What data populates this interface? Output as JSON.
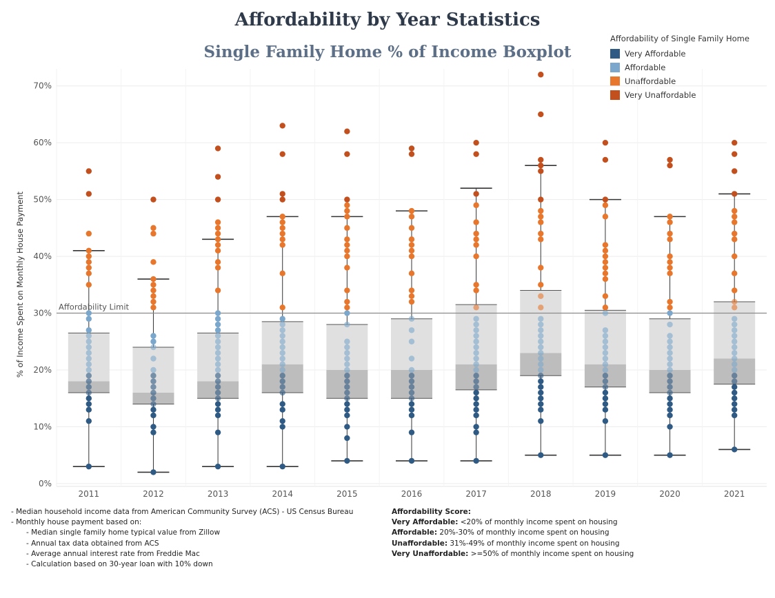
{
  "title": "Affordability by Year Statistics",
  "subtitle": "Single Family Home % of Income Boxplot",
  "legend": {
    "title": "Affordability of Single Family Home",
    "items": [
      {
        "label": "Very Affordable",
        "color": "#2e5a84"
      },
      {
        "label": "Affordable",
        "color": "#7ba7cc"
      },
      {
        "label": "Unaffordable",
        "color": "#e8772e"
      },
      {
        "label": "Very Unaffordable",
        "color": "#c2501f"
      }
    ]
  },
  "chart_data": {
    "type": "boxplot",
    "ylabel": "% of Income Spent on Monthly House Payment",
    "ylim": [
      -0.5,
      73
    ],
    "yticks": [
      0,
      10,
      20,
      30,
      40,
      50,
      60,
      70
    ],
    "ytick_labels": [
      "0%",
      "10%",
      "20%",
      "30%",
      "40%",
      "50%",
      "60%",
      "70%"
    ],
    "reference_line": {
      "label": "Affordability Limit",
      "value": 30
    },
    "categories": [
      "2011",
      "2012",
      "2013",
      "2014",
      "2015",
      "2016",
      "2017",
      "2018",
      "2019",
      "2020",
      "2021"
    ],
    "boxes": [
      {
        "year": "2011",
        "min": 3,
        "q1": 16,
        "median": 18,
        "q3": 26.5,
        "max": 41
      },
      {
        "year": "2012",
        "min": 2,
        "q1": 14,
        "median": 16,
        "q3": 24,
        "max": 36
      },
      {
        "year": "2013",
        "min": 3,
        "q1": 15,
        "median": 18,
        "q3": 26.5,
        "max": 43
      },
      {
        "year": "2014",
        "min": 3,
        "q1": 16,
        "median": 21,
        "q3": 28.5,
        "max": 47
      },
      {
        "year": "2015",
        "min": 4,
        "q1": 15,
        "median": 20,
        "q3": 28,
        "max": 47
      },
      {
        "year": "2016",
        "min": 4,
        "q1": 15,
        "median": 20,
        "q3": 29,
        "max": 48
      },
      {
        "year": "2017",
        "min": 4,
        "q1": 16.5,
        "median": 21,
        "q3": 31.5,
        "max": 52
      },
      {
        "year": "2018",
        "min": 5,
        "q1": 19,
        "median": 23,
        "q3": 34,
        "max": 56
      },
      {
        "year": "2019",
        "min": 5,
        "q1": 17,
        "median": 21,
        "q3": 30.5,
        "max": 50
      },
      {
        "year": "2020",
        "min": 5,
        "q1": 16,
        "median": 20,
        "q3": 29,
        "max": 47
      },
      {
        "year": "2021",
        "min": 6,
        "q1": 17.5,
        "median": 22,
        "q3": 32,
        "max": 51
      }
    ],
    "points": {
      "2011": [
        3,
        11,
        13,
        14,
        15,
        16,
        17,
        18,
        19,
        20,
        21,
        22,
        23,
        24,
        25,
        26,
        27,
        29,
        30,
        35,
        37,
        38,
        39,
        40,
        41,
        44,
        51,
        55
      ],
      "2012": [
        2,
        9,
        10,
        12,
        13,
        14,
        15,
        16,
        17,
        18,
        19,
        20,
        22,
        24,
        25,
        26,
        31,
        32,
        33,
        34,
        35,
        36,
        39,
        44,
        45,
        50
      ],
      "2013": [
        3,
        9,
        12,
        13,
        14,
        15,
        16,
        17,
        18,
        19,
        20,
        21,
        22,
        23,
        24,
        25,
        26,
        27,
        28,
        29,
        30,
        34,
        38,
        39,
        41,
        42,
        43,
        44,
        45,
        46,
        50,
        54,
        59
      ],
      "2014": [
        3,
        10,
        11,
        13,
        14,
        16,
        17,
        18,
        19,
        20,
        21,
        22,
        23,
        24,
        25,
        26,
        27,
        28,
        29,
        31,
        37,
        42,
        43,
        44,
        45,
        46,
        47,
        50,
        51,
        58,
        63
      ],
      "2015": [
        4,
        8,
        10,
        12,
        13,
        14,
        15,
        16,
        17,
        18,
        19,
        20,
        21,
        22,
        23,
        24,
        25,
        28,
        30,
        31,
        32,
        34,
        38,
        40,
        41,
        42,
        43,
        45,
        47,
        48,
        49,
        50,
        58,
        62
      ],
      "2016": [
        4,
        9,
        12,
        13,
        14,
        15,
        16,
        17,
        18,
        19,
        20,
        22,
        25,
        27,
        29,
        32,
        33,
        34,
        37,
        40,
        41,
        42,
        43,
        45,
        47,
        48,
        58,
        59
      ],
      "2017": [
        4,
        9,
        10,
        12,
        13,
        14,
        15,
        16,
        17,
        18,
        19,
        20,
        21,
        22,
        23,
        24,
        25,
        26,
        27,
        28,
        29,
        31,
        34,
        35,
        40,
        42,
        43,
        44,
        46,
        49,
        51,
        58,
        60
      ],
      "2018": [
        5,
        11,
        13,
        14,
        15,
        16,
        17,
        18,
        19,
        20,
        21,
        22,
        23,
        24,
        25,
        26,
        27,
        28,
        29,
        31,
        33,
        35,
        38,
        43,
        44,
        46,
        47,
        48,
        50,
        55,
        56,
        57,
        65,
        72
      ],
      "2019": [
        5,
        11,
        13,
        14,
        15,
        16,
        17,
        18,
        19,
        20,
        21,
        22,
        23,
        24,
        25,
        26,
        27,
        30,
        31,
        33,
        36,
        37,
        38,
        39,
        40,
        41,
        42,
        47,
        49,
        50,
        57,
        60
      ],
      "2020": [
        5,
        10,
        12,
        13,
        14,
        15,
        16,
        17,
        18,
        19,
        20,
        21,
        22,
        23,
        24,
        25,
        26,
        28,
        30,
        31,
        32,
        37,
        38,
        39,
        40,
        43,
        44,
        46,
        47,
        56,
        57
      ],
      "2021": [
        6,
        12,
        13,
        14,
        15,
        16,
        17,
        18,
        19,
        20,
        21,
        22,
        23,
        24,
        25,
        26,
        27,
        28,
        29,
        31,
        32,
        34,
        37,
        40,
        43,
        44,
        46,
        47,
        48,
        51,
        55,
        58,
        60
      ]
    },
    "categories_colors": {
      "very_affordable_max": 19,
      "affordable_max": 30,
      "unaffordable_max": 49
    }
  },
  "footer_left": {
    "lines": [
      "- Median household income data from American Community Survey (ACS) - US Census Bureau",
      "- Monthly house payment based on:"
    ],
    "sub_lines": [
      "- Median single family home typical value from Zillow",
      "- Annual tax data obtained from ACS",
      "- Average annual interest rate from Freddie Mac",
      "- Calculation based on 30-year loan with 10% down"
    ]
  },
  "footer_right": {
    "heading": "Affordability Score:",
    "rows": [
      {
        "label": "Very Affordable:",
        "text": " <20% of monthly income  spent on housing"
      },
      {
        "label": "Affordable:",
        "text": " 20%-30% of monthly income spent on housing"
      },
      {
        "label": "Unaffordable:",
        "text": " 31%-49% of monthly income spent on housing"
      },
      {
        "label": "Very Unaffordable:",
        "text": " >=50% of monthly income spent on housing"
      }
    ]
  }
}
